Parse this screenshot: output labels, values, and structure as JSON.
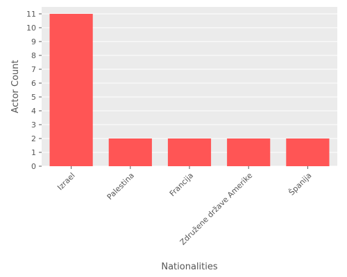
{
  "chart_data": {
    "type": "bar",
    "categories": [
      "Izrael",
      "Palestina",
      "Francija",
      "Združene države Amerike",
      "Španija"
    ],
    "values": [
      11,
      2,
      2,
      2,
      2
    ],
    "xlabel": "Nationalities",
    "ylabel": "Actor Count",
    "ylim": [
      0,
      11
    ],
    "yticks": [
      0,
      1,
      2,
      3,
      4,
      5,
      6,
      7,
      8,
      9,
      10,
      11
    ],
    "grid": true,
    "bar_color": "#ff5555",
    "background_color": "#ebebeb",
    "grid_color": "#ffffff"
  }
}
